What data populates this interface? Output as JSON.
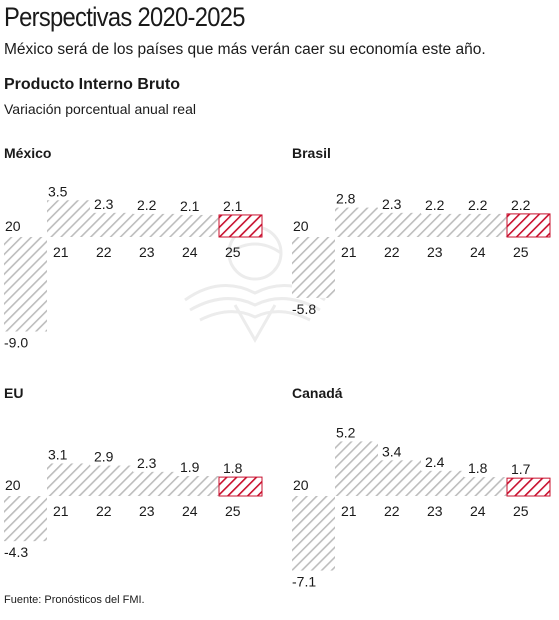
{
  "header": {
    "title": "Perspectivas 2020-2025",
    "subtitle": "México será de los países que más verán caer su economía este año."
  },
  "chart_header": {
    "title": "Producto Interno Bruto",
    "subtitle": "Variación porcentual anual real"
  },
  "footer": {
    "source": "Fuente: Pronósticos del FMI."
  },
  "colors": {
    "bar": "#bdbdbd",
    "highlight": "#c8102e",
    "text": "#1a1a1a"
  },
  "chart_data": [
    {
      "type": "bar",
      "title": "México",
      "categories": [
        "20",
        "21",
        "22",
        "23",
        "24",
        "25"
      ],
      "values": [
        -9.0,
        3.5,
        2.3,
        2.2,
        2.1,
        2.1
      ],
      "value_labels": [
        "-9.0",
        "3.5",
        "2.3",
        "2.2",
        "2.1",
        "2.1"
      ],
      "highlight_category": "25"
    },
    {
      "type": "bar",
      "title": "Brasil",
      "categories": [
        "20",
        "21",
        "22",
        "23",
        "24",
        "25"
      ],
      "values": [
        -5.8,
        2.8,
        2.3,
        2.2,
        2.2,
        2.2
      ],
      "value_labels": [
        "-5.8",
        "2.8",
        "2.3",
        "2.2",
        "2.2",
        "2.2"
      ],
      "highlight_category": "25"
    },
    {
      "type": "bar",
      "title": "EU",
      "categories": [
        "20",
        "21",
        "22",
        "23",
        "24",
        "25"
      ],
      "values": [
        -4.3,
        3.1,
        2.9,
        2.3,
        1.9,
        1.8
      ],
      "value_labels": [
        "-4.3",
        "3.1",
        "2.9",
        "2.3",
        "1.9",
        "1.8"
      ],
      "highlight_category": "25"
    },
    {
      "type": "bar",
      "title": "Canadá",
      "categories": [
        "20",
        "21",
        "22",
        "23",
        "24",
        "25"
      ],
      "values": [
        -7.1,
        5.2,
        3.4,
        2.4,
        1.8,
        1.7
      ],
      "value_labels": [
        "-7.1",
        "5.2",
        "3.4",
        "2.4",
        "1.8",
        "1.7"
      ],
      "highlight_category": "25"
    }
  ]
}
